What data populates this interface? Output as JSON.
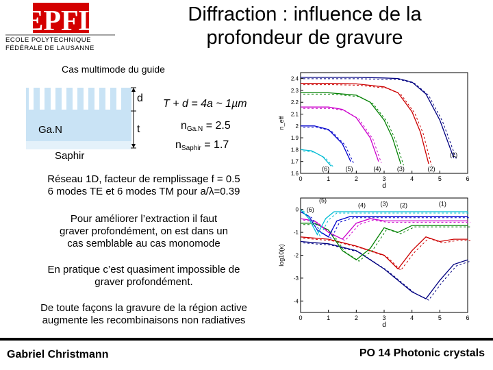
{
  "header": {
    "logo_text": "EPFL",
    "institution_line1": "ECOLE POLYTECHNIQUE",
    "institution_line2": "FÉDÉRALE DE LAUSANNE",
    "title_line1": "Diffraction : influence de la",
    "title_line2": "profondeur de gravure"
  },
  "schematic": {
    "subtitle": "Cas multimode du guide",
    "label_gan": "Ga.N",
    "label_saphir": "Saphir",
    "label_d": "d",
    "label_t": "t",
    "formula_td": "T + d = 4a ~ 1µm",
    "n_gan_prefix": "n",
    "n_gan_sub": "Ga.N",
    "n_gan_value": " = 2.5",
    "n_saphir_prefix": "n",
    "n_saphir_sub": "Saphir",
    "n_saphir_value": " = 1.7"
  },
  "body": {
    "para1_line1": "Réseau 1D, facteur de remplissage f = 0.5",
    "para1_line2": "6 modes TE et 6 modes TM pour a/λ=0.39",
    "para2_line1": "Pour améliorer l’extraction il faut",
    "para2_line2": "graver profondément, on est dans un",
    "para2_line3": "cas semblable au cas monomode",
    "para3_line1": "En pratique c’est quasiment impossible de",
    "para3_line2": "graver profondément.",
    "para4_line1": "De toute façons la gravure de la région active",
    "para4_line2": "augmente les recombinaisons non radiatives"
  },
  "footer": {
    "author": "Gabriel Christmann",
    "course": "PO 14 Photonic crystals"
  },
  "colors": {
    "logo_red": "#d40000",
    "mode1": "#000080",
    "mode2": "#cc0000",
    "mode3": "#008000",
    "mode4": "#cc00cc",
    "mode5": "#0000cc",
    "mode6": "#00bcd4"
  },
  "chart_data": [
    {
      "type": "line",
      "xlabel": "d",
      "ylabel": "n_eff",
      "xlim": [
        0,
        6
      ],
      "ylim": [
        1.6,
        2.45
      ],
      "x_ticks": [
        "0",
        "1",
        "2",
        "3",
        "4",
        "5",
        "6"
      ],
      "y_ticks": [
        "1.6",
        "1.7",
        "1.8",
        "1.9",
        "2",
        "2.1",
        "2.2",
        "2.3",
        "2.4"
      ],
      "mode_labels": [
        "(1)",
        "(2)",
        "(3)",
        "(4)",
        "(5)",
        "(6)"
      ],
      "series": [
        {
          "name": "(1)",
          "x": [
            0,
            1,
            2,
            3,
            3.5,
            4,
            4.5,
            5,
            5.5
          ],
          "y": [
            2.41,
            2.41,
            2.41,
            2.405,
            2.4,
            2.37,
            2.27,
            2.05,
            1.73
          ]
        },
        {
          "name": "(2)",
          "x": [
            0,
            1,
            2,
            3,
            3.5,
            4,
            4.3,
            4.6
          ],
          "y": [
            2.36,
            2.36,
            2.355,
            2.33,
            2.28,
            2.12,
            1.95,
            1.68
          ]
        },
        {
          "name": "(3)",
          "x": [
            0,
            1,
            2,
            2.5,
            3,
            3.3,
            3.6
          ],
          "y": [
            2.28,
            2.28,
            2.26,
            2.2,
            2.05,
            1.9,
            1.68
          ]
        },
        {
          "name": "(4)",
          "x": [
            0,
            1,
            1.5,
            2,
            2.5,
            2.8
          ],
          "y": [
            2.16,
            2.16,
            2.14,
            2.07,
            1.9,
            1.7
          ]
        },
        {
          "name": "(5)",
          "x": [
            0,
            0.5,
            1,
            1.5,
            1.8
          ],
          "y": [
            2.0,
            2.0,
            1.97,
            1.85,
            1.7
          ]
        },
        {
          "name": "(6)",
          "x": [
            0,
            0.4,
            0.8,
            1.1
          ],
          "y": [
            1.8,
            1.79,
            1.74,
            1.66
          ]
        }
      ]
    },
    {
      "type": "line",
      "xlabel": "d",
      "ylabel": "log10(κ)",
      "xlim": [
        0,
        6
      ],
      "ylim": [
        -4.5,
        0.5
      ],
      "x_ticks": [
        "0",
        "1",
        "2",
        "3",
        "4",
        "5",
        "6"
      ],
      "y_ticks": [
        "0",
        "-1",
        "-2",
        "-3",
        "-4"
      ],
      "mode_labels": [
        "(1)",
        "(2)",
        "(3)",
        "(4)",
        "(5)",
        "(6)"
      ],
      "series": [
        {
          "name": "(1)",
          "x": [
            0,
            1,
            2,
            3,
            4,
            4.5,
            5,
            5.5,
            6
          ],
          "y": [
            -1.4,
            -1.5,
            -1.8,
            -2.6,
            -3.6,
            -3.9,
            -3.1,
            -2.4,
            -2.2
          ]
        },
        {
          "name": "(2)",
          "x": [
            0,
            1,
            2,
            3,
            3.5,
            4,
            4.5,
            5,
            5.5,
            6
          ],
          "y": [
            -1.2,
            -1.3,
            -1.6,
            -2.0,
            -2.6,
            -1.8,
            -1.2,
            -1.4,
            -1.3,
            -1.3
          ]
        },
        {
          "name": "(3)",
          "x": [
            0,
            0.5,
            1,
            1.5,
            2,
            2.5,
            3,
            3.5,
            4,
            5,
            6
          ],
          "y": [
            -0.6,
            -0.6,
            -0.9,
            -1.8,
            -2.2,
            -1.7,
            -0.8,
            -1.0,
            -0.7,
            -0.7,
            -0.7
          ]
        },
        {
          "name": "(4)",
          "x": [
            0,
            0.5,
            1,
            1.5,
            2,
            2.5,
            3,
            4,
            5,
            6
          ],
          "y": [
            -0.4,
            -0.5,
            -1.0,
            -1.3,
            -0.6,
            -0.4,
            -0.5,
            -0.5,
            -0.5,
            -0.5
          ]
        },
        {
          "name": "(5)",
          "x": [
            0,
            0.3,
            0.6,
            1,
            1.3,
            1.8,
            2.5,
            4,
            6
          ],
          "y": [
            -0.1,
            -0.3,
            -0.9,
            -1.2,
            -0.5,
            -0.3,
            -0.3,
            -0.3,
            -0.3
          ]
        },
        {
          "name": "(6)",
          "x": [
            0,
            0.3,
            0.6,
            0.9,
            1.2,
            2,
            4,
            6
          ],
          "y": [
            0.0,
            -0.4,
            -1.1,
            -0.4,
            -0.1,
            -0.1,
            -0.1,
            -0.1
          ]
        }
      ]
    }
  ]
}
